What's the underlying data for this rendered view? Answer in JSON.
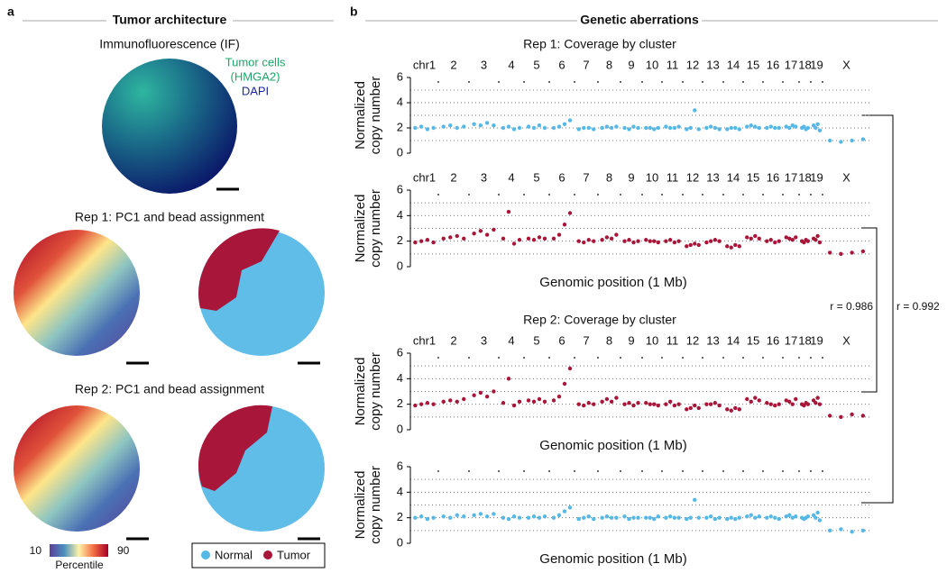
{
  "panel_a": {
    "label": "a",
    "title": "Tumor architecture",
    "if_title": "Immunofluorescence (IF)",
    "if_labels": [
      "Tumor cells",
      "(HMGA2)",
      "DAPI"
    ],
    "rep1_title": "Rep 1: PC1 and bead assignment",
    "rep2_title": "Rep 2: PC1 and bead assignment",
    "colorbar": {
      "min": 10,
      "max": 90,
      "label": "Percentile"
    },
    "legend": [
      "Normal",
      "Tumor"
    ]
  },
  "panel_b": {
    "label": "b",
    "title": "Genetic aberrations",
    "correlations": [
      "r = 0.986",
      "r = 0.992"
    ]
  },
  "chart_data": [
    {
      "type": "scatter",
      "title": "Rep 1: Coverage by cluster",
      "categories": [
        "chr1",
        "2",
        "3",
        "4",
        "5",
        "6",
        "7",
        "8",
        "9",
        "10",
        "11",
        "12",
        "13",
        "14",
        "15",
        "16",
        "17",
        "18",
        "19",
        "X"
      ],
      "ylabel": [
        "Normalized",
        "copy number"
      ],
      "ylim": [
        0,
        6
      ],
      "yticks": [
        0,
        2,
        4,
        6
      ],
      "ygrid": [
        1,
        2,
        3,
        4,
        5
      ],
      "color": "#55b8e6",
      "values": [
        [
          2.0,
          2.1,
          1.9,
          2.0
        ],
        [
          2.1,
          2.2,
          2.0,
          2.1
        ],
        [
          2.3,
          2.2,
          2.4,
          2.2
        ],
        [
          2.0,
          2.1,
          1.9,
          2.0
        ],
        [
          2.1,
          2.0,
          2.2,
          2.0
        ],
        [
          2.0,
          2.1,
          2.3,
          2.6
        ],
        [
          1.9,
          2.0,
          2.0,
          1.9
        ],
        [
          2.0,
          2.1,
          2.0,
          2.1
        ],
        [
          2.0,
          1.9,
          2.1,
          2.0
        ],
        [
          2.0,
          2.0,
          1.9,
          2.0
        ],
        [
          2.1,
          2.0,
          2.0,
          2.1
        ],
        [
          1.9,
          2.0,
          3.4,
          1.9
        ],
        [
          2.0,
          2.1,
          2.0,
          1.9
        ],
        [
          1.9,
          2.0,
          2.0,
          1.9
        ],
        [
          2.1,
          2.2,
          2.1,
          2.0
        ],
        [
          2.0,
          2.1,
          2.0,
          2.0
        ],
        [
          2.1,
          2.0,
          2.2,
          2.1
        ],
        [
          2.0,
          2.1,
          1.9,
          2.0
        ],
        [
          2.2,
          2.0,
          2.3,
          1.8
        ],
        [
          1.0,
          0.9,
          1.0,
          1.1
        ]
      ]
    },
    {
      "type": "scatter",
      "categories": [
        "chr1",
        "2",
        "3",
        "4",
        "5",
        "6",
        "7",
        "8",
        "9",
        "10",
        "11",
        "12",
        "13",
        "14",
        "15",
        "16",
        "17",
        "18",
        "19",
        "X"
      ],
      "xlabel": "Genomic position (1 Mb)",
      "ylabel": [
        "Normalized",
        "copy number"
      ],
      "ylim": [
        0,
        6
      ],
      "yticks": [
        0,
        2,
        4,
        6
      ],
      "ygrid": [
        1,
        2,
        3,
        4,
        5
      ],
      "color": "#a8163a",
      "values": [
        [
          1.9,
          2.0,
          2.1,
          1.9
        ],
        [
          2.2,
          2.3,
          2.4,
          2.2
        ],
        [
          2.6,
          2.8,
          2.5,
          2.9
        ],
        [
          2.2,
          4.3,
          1.8,
          2.1
        ],
        [
          2.2,
          2.1,
          2.3,
          2.2
        ],
        [
          2.2,
          2.5,
          3.3,
          4.2
        ],
        [
          2.0,
          1.9,
          2.1,
          2.0
        ],
        [
          2.1,
          2.3,
          2.2,
          2.5
        ],
        [
          2.0,
          2.1,
          1.9,
          2.0
        ],
        [
          2.1,
          2.0,
          2.0,
          1.9
        ],
        [
          2.0,
          2.1,
          1.9,
          2.0
        ],
        [
          1.6,
          1.7,
          1.8,
          1.7
        ],
        [
          1.9,
          2.0,
          2.1,
          2.0
        ],
        [
          1.6,
          1.5,
          1.7,
          1.6
        ],
        [
          2.3,
          2.2,
          2.4,
          2.2
        ],
        [
          2.0,
          2.1,
          1.9,
          2.0
        ],
        [
          2.3,
          2.2,
          2.1,
          2.3
        ],
        [
          2.0,
          1.9,
          2.1,
          2.0
        ],
        [
          2.2,
          2.1,
          2.4,
          1.9
        ],
        [
          1.1,
          1.0,
          1.1,
          1.2
        ]
      ]
    },
    {
      "type": "scatter",
      "title": "Rep 2: Coverage by cluster",
      "categories": [
        "chr1",
        "2",
        "3",
        "4",
        "5",
        "6",
        "7",
        "8",
        "9",
        "10",
        "11",
        "12",
        "13",
        "14",
        "15",
        "16",
        "17",
        "18",
        "19",
        "X"
      ],
      "xlabel": "Genomic position (1 Mb)",
      "ylabel": [
        "Normalized",
        "copy number"
      ],
      "ylim": [
        0,
        6
      ],
      "yticks": [
        0,
        2,
        4,
        6
      ],
      "ygrid": [
        1,
        2,
        3,
        4,
        5
      ],
      "color": "#a8163a",
      "values": [
        [
          1.9,
          2.0,
          2.1,
          2.0
        ],
        [
          2.2,
          2.3,
          2.2,
          2.4
        ],
        [
          2.7,
          2.9,
          2.6,
          3.0
        ],
        [
          2.1,
          4.0,
          1.9,
          2.2
        ],
        [
          2.3,
          2.2,
          2.4,
          2.2
        ],
        [
          2.3,
          2.6,
          3.6,
          4.8
        ],
        [
          2.0,
          1.9,
          2.1,
          2.0
        ],
        [
          2.2,
          2.4,
          2.2,
          2.5
        ],
        [
          2.0,
          2.1,
          1.9,
          2.1
        ],
        [
          2.1,
          2.0,
          2.0,
          1.9
        ],
        [
          2.0,
          2.2,
          1.9,
          2.0
        ],
        [
          1.6,
          1.7,
          1.9,
          1.7
        ],
        [
          2.0,
          2.0,
          2.1,
          1.9
        ],
        [
          1.6,
          1.5,
          1.7,
          1.6
        ],
        [
          2.4,
          2.2,
          2.5,
          2.3
        ],
        [
          2.1,
          2.0,
          1.9,
          2.0
        ],
        [
          2.3,
          2.2,
          2.0,
          2.4
        ],
        [
          2.0,
          1.9,
          2.1,
          2.0
        ],
        [
          2.3,
          2.1,
          2.5,
          2.0
        ],
        [
          1.1,
          1.0,
          1.2,
          1.1
        ]
      ]
    },
    {
      "type": "scatter",
      "xlabel": "Genomic position (1 Mb)",
      "ylabel": [
        "Normalized",
        "copy number"
      ],
      "ylim": [
        0,
        6
      ],
      "yticks": [
        0,
        2,
        4,
        6
      ],
      "ygrid": [
        1,
        2,
        3,
        4,
        5
      ],
      "color": "#55b8e6",
      "values": [
        [
          2.0,
          2.1,
          1.9,
          2.0
        ],
        [
          2.1,
          2.0,
          2.2,
          2.1
        ],
        [
          2.2,
          2.3,
          2.1,
          2.3
        ],
        [
          2.0,
          1.9,
          2.1,
          2.0
        ],
        [
          2.0,
          2.1,
          2.0,
          2.1
        ],
        [
          2.0,
          2.2,
          2.5,
          2.8
        ],
        [
          1.9,
          2.0,
          2.1,
          1.9
        ],
        [
          2.0,
          2.1,
          2.0,
          2.0
        ],
        [
          2.1,
          1.9,
          2.0,
          2.0
        ],
        [
          2.0,
          2.0,
          1.9,
          2.1
        ],
        [
          2.0,
          2.1,
          2.0,
          2.0
        ],
        [
          1.9,
          2.0,
          3.4,
          2.0
        ],
        [
          2.0,
          2.1,
          1.9,
          2.0
        ],
        [
          1.9,
          2.0,
          1.9,
          2.0
        ],
        [
          2.1,
          2.2,
          2.0,
          2.1
        ],
        [
          2.0,
          2.1,
          2.0,
          1.9
        ],
        [
          2.1,
          2.2,
          2.0,
          2.1
        ],
        [
          2.0,
          1.9,
          2.0,
          2.1
        ],
        [
          2.2,
          2.0,
          2.4,
          1.8
        ],
        [
          1.0,
          1.1,
          0.9,
          1.0
        ]
      ]
    }
  ]
}
